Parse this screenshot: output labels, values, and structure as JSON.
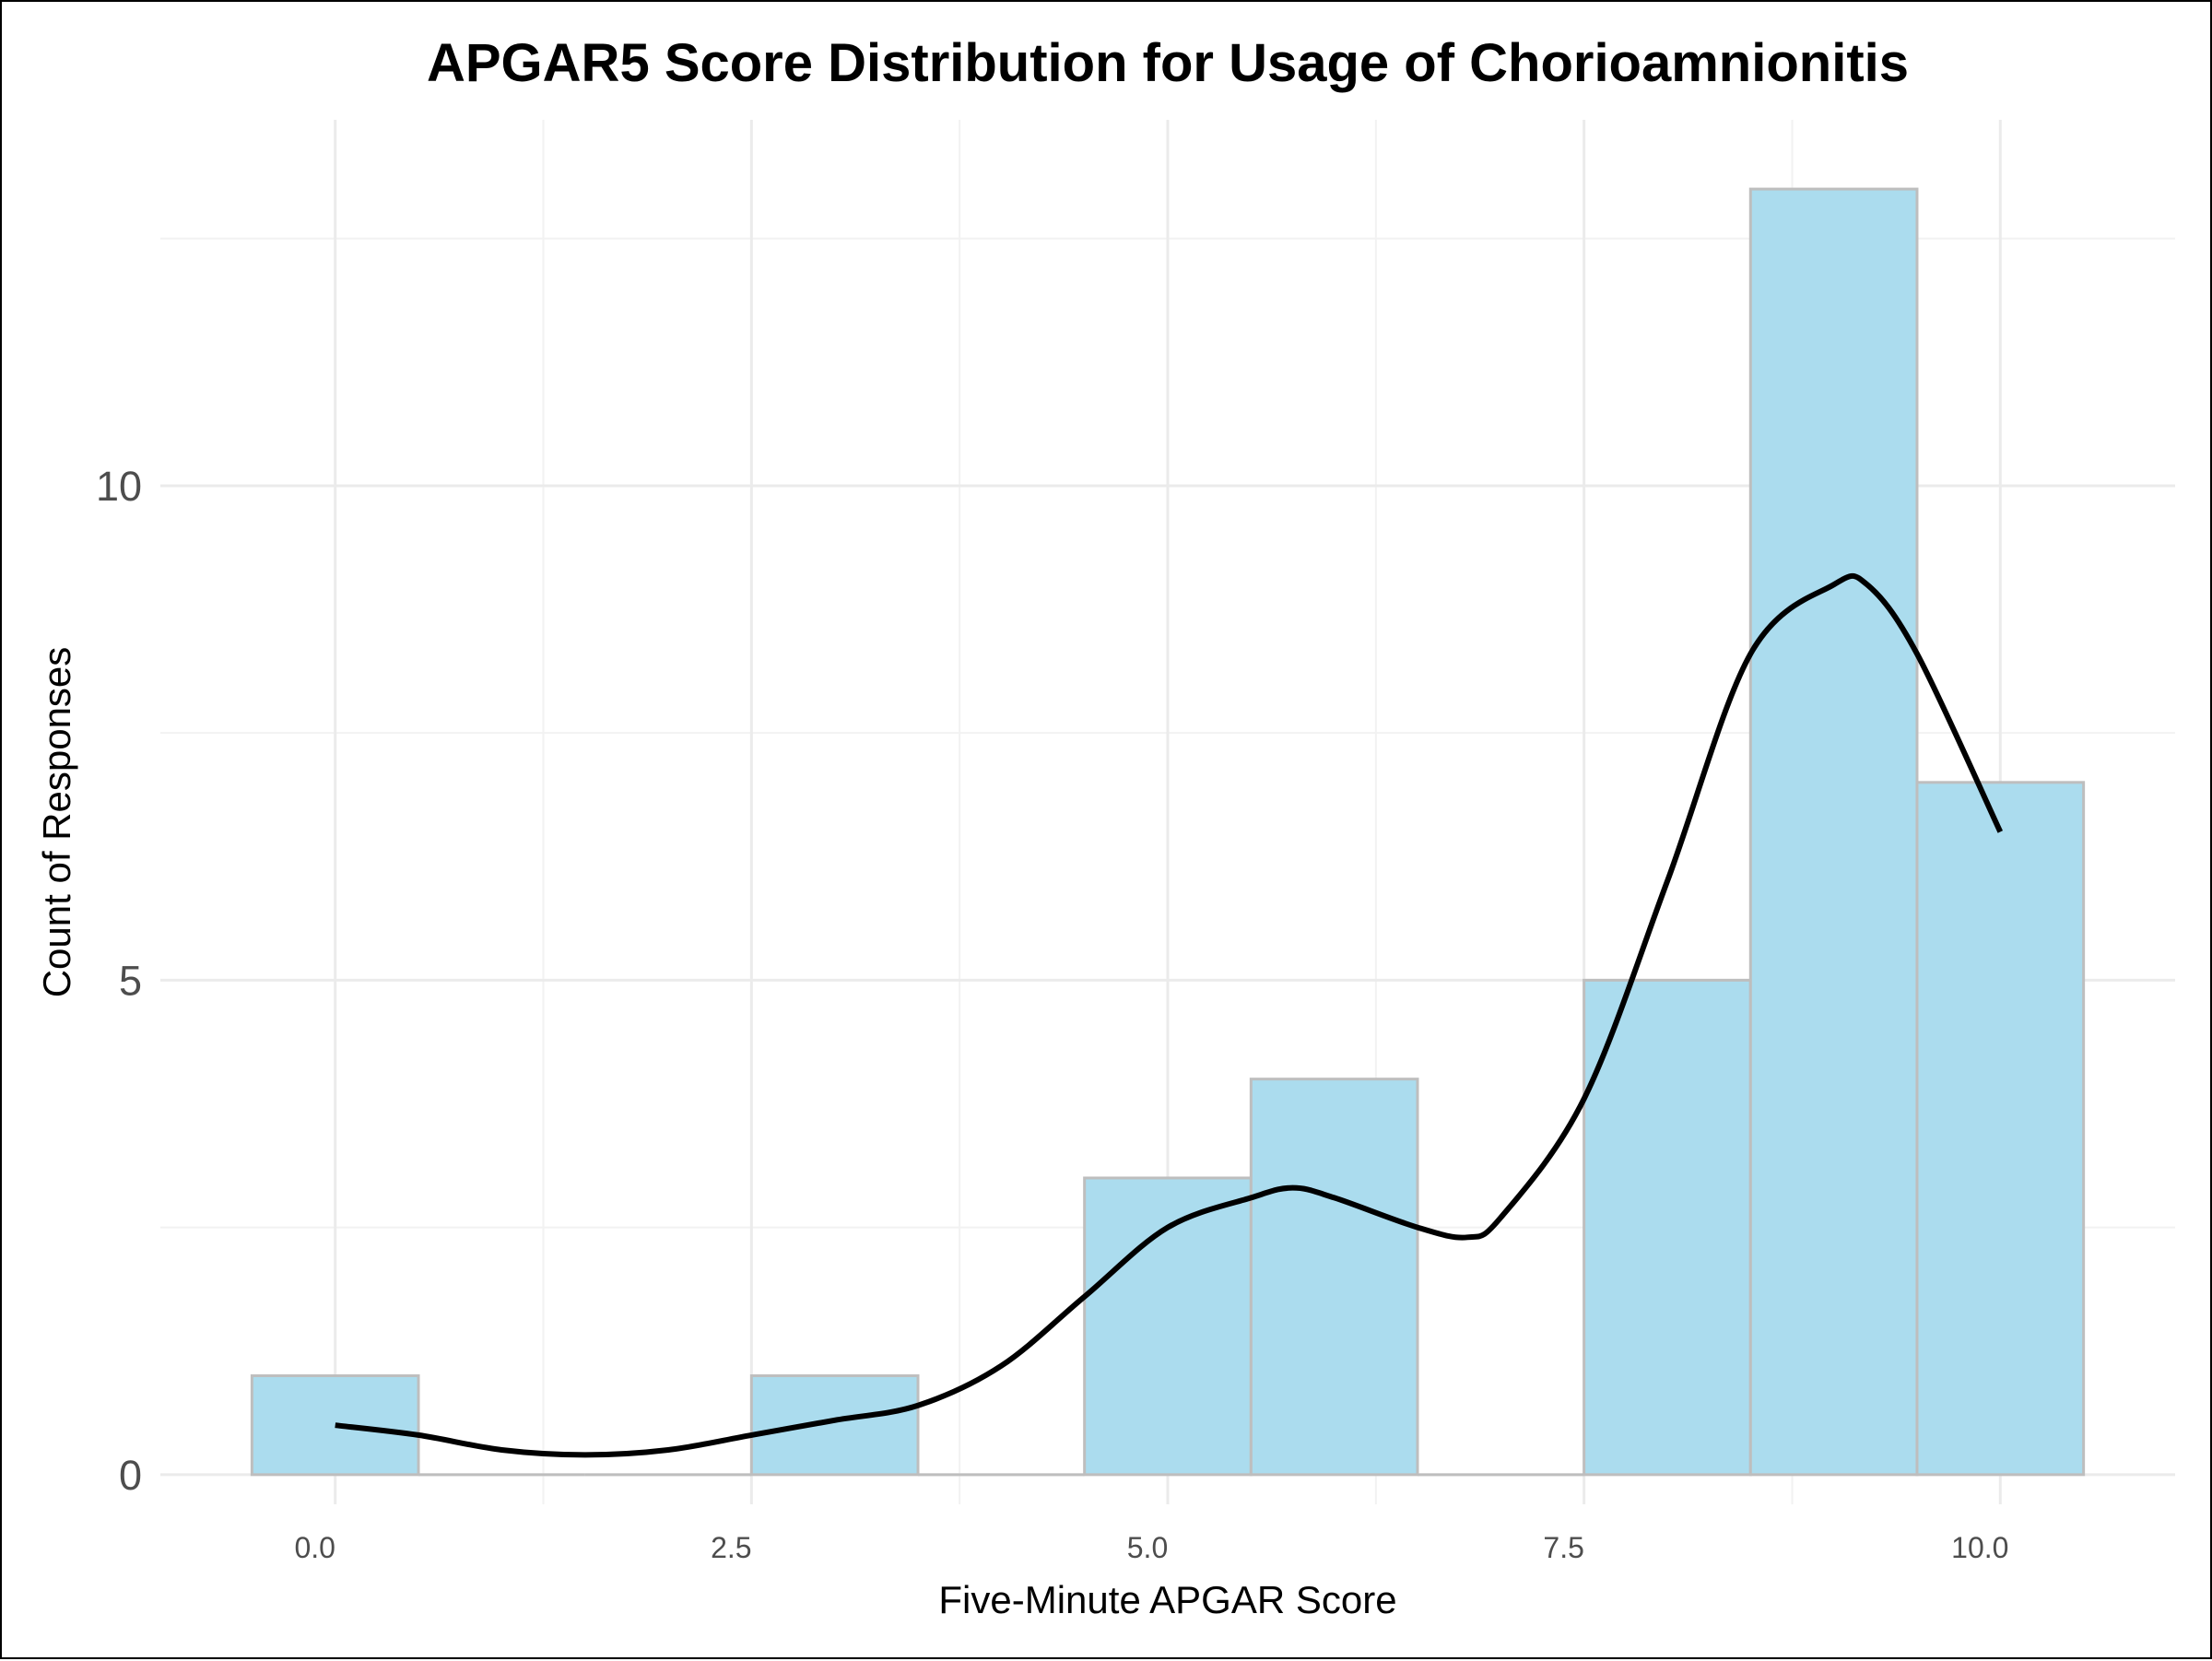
{
  "chart_data": {
    "type": "bar",
    "title": "APGAR5 Score Distribution for Usage of Chorioamnionitis",
    "xlabel": "Five-Minute APGAR Score",
    "ylabel": "Count of Responses",
    "xlim": [
      -1.05,
      11.05
    ],
    "ylim": [
      -0.3,
      13.7
    ],
    "x_ticks": [
      0.0,
      2.5,
      5.0,
      7.5,
      10.0
    ],
    "x_tick_labels": [
      "0.0",
      "2.5",
      "5.0",
      "7.5",
      "10.0"
    ],
    "y_ticks": [
      0,
      5,
      10
    ],
    "y_tick_labels": [
      "0",
      "5",
      "10"
    ],
    "x_minor_gridlines": [
      1.25,
      3.75,
      6.25,
      8.75
    ],
    "y_minor_gridlines": [
      2.5,
      7.5,
      12.5
    ],
    "grid": true,
    "legend": "none",
    "bins": [
      {
        "center": 0,
        "value": 1
      },
      {
        "center": 1,
        "value": 0
      },
      {
        "center": 2,
        "value": 0
      },
      {
        "center": 3,
        "value": 1
      },
      {
        "center": 4,
        "value": 0
      },
      {
        "center": 5,
        "value": 3
      },
      {
        "center": 6,
        "value": 4
      },
      {
        "center": 7,
        "value": 0
      },
      {
        "center": 8,
        "value": 5
      },
      {
        "center": 9,
        "value": 13
      },
      {
        "center": 10,
        "value": 7
      }
    ],
    "bin_width": 1,
    "density_curve": {
      "x": [
        0.0,
        0.5,
        1.0,
        1.5,
        2.0,
        2.5,
        3.0,
        3.5,
        4.0,
        4.5,
        5.0,
        5.5,
        5.75,
        6.0,
        6.5,
        6.8,
        7.0,
        7.5,
        8.0,
        8.5,
        9.0,
        9.2,
        9.5,
        10.0
      ],
      "y": [
        0.5,
        0.4,
        0.25,
        0.2,
        0.25,
        0.4,
        0.55,
        0.7,
        1.1,
        1.8,
        2.5,
        2.8,
        2.9,
        2.8,
        2.5,
        2.4,
        2.6,
        3.8,
        6.0,
        8.3,
        9.0,
        9.0,
        8.3,
        6.5
      ]
    },
    "colors": {
      "bar_fill": "#abdcee",
      "bar_stroke": "#bebebe",
      "curve": "#000000",
      "grid_major": "#ebebeb",
      "grid_minor": "#f2f2f2"
    }
  }
}
